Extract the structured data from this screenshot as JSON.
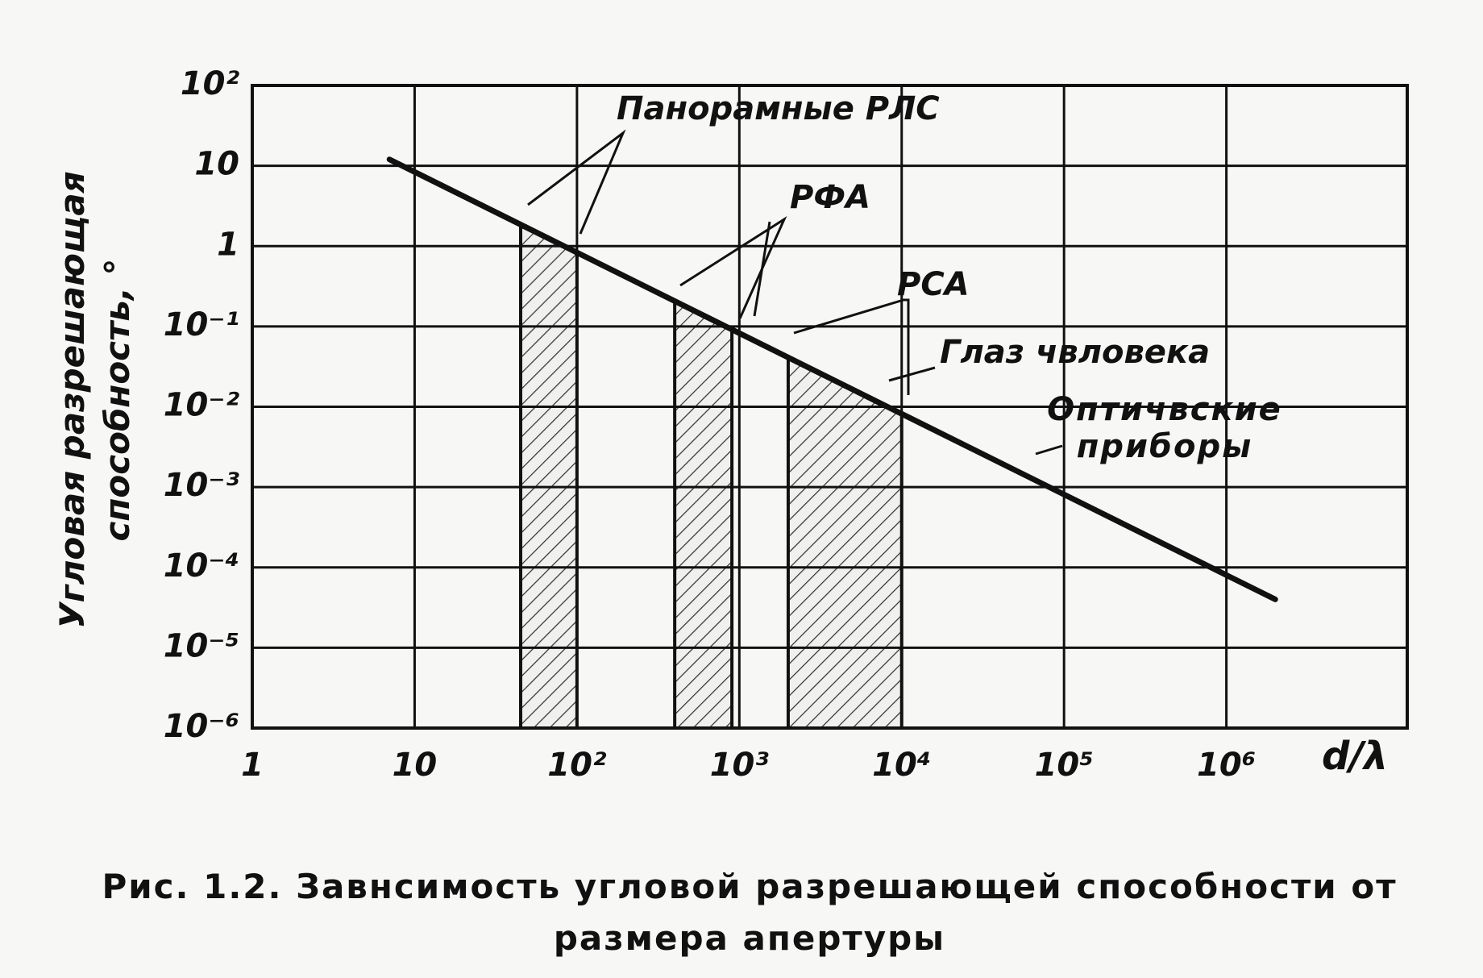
{
  "chart_data": {
    "type": "line",
    "title": "Рис. 1.2. Завнсимость угловой разрешающей способности от размера апертуры",
    "x_label": "d/λ",
    "y_label": "Угловая разрешающая способность, °",
    "log_x": true,
    "log_y": true,
    "grid": true,
    "xlim": [
      1,
      13000000
    ],
    "ylim": [
      1e-06,
      100
    ],
    "xticks": [
      1,
      10,
      {
        "value": 100,
        "label": "10²"
      },
      {
        "value": 1000,
        "label": "10³"
      },
      {
        "value": 10000,
        "label": "10⁴"
      },
      {
        "value": 100000,
        "label": "10⁵"
      },
      {
        "value": 1000000,
        "label": "10⁶"
      }
    ],
    "yticks": [
      {
        "value": 1e-06,
        "label": "10⁻⁶"
      },
      {
        "value": 1e-05,
        "label": "10⁻⁵"
      },
      {
        "value": 0.0001,
        "label": "10⁻⁴"
      },
      {
        "value": 0.001,
        "label": "10⁻³"
      },
      {
        "value": 0.01,
        "label": "10⁻²"
      },
      {
        "value": 0.1,
        "label": "10⁻¹"
      },
      1,
      10,
      {
        "value": 100,
        "label": "10²"
      }
    ],
    "series": [
      {
        "color": "#111111",
        "x": [
          7,
          2000000
        ],
        "values": [
          12,
          4e-05
        ]
      }
    ],
    "regions": [
      {
        "name": "Панорамные РЛС",
        "x": [
          45,
          100
        ]
      },
      {
        "name": "РФА",
        "x": [
          400,
          900
        ]
      },
      {
        "name": "РСА",
        "x": [
          2000,
          10000
        ]
      }
    ],
    "annotations": [
      "Глаз чвловека",
      "Оптичвские приборы"
    ]
  }
}
